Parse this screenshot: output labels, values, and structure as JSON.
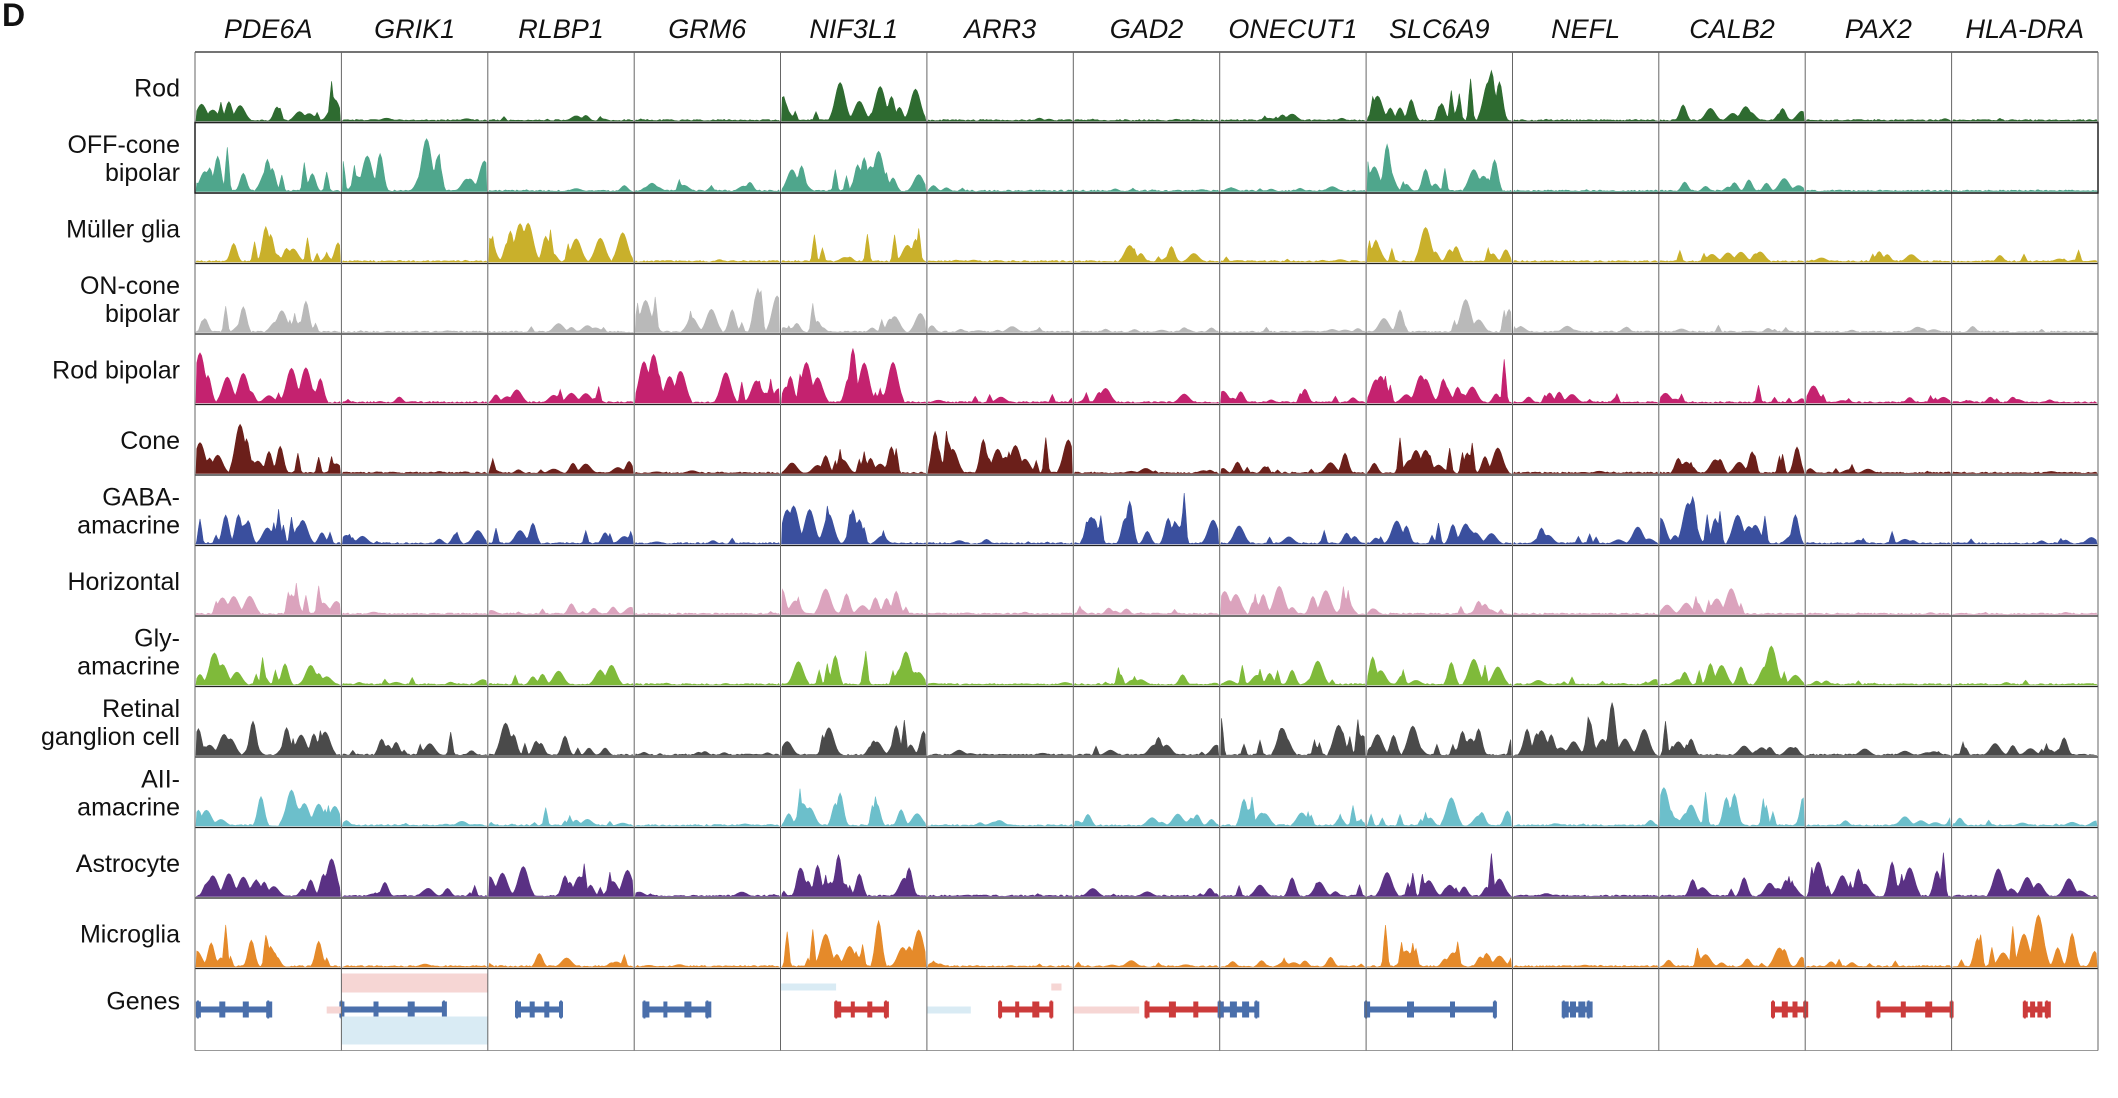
{
  "figure": {
    "panel_letter": "D"
  },
  "chart_data": {
    "type": "area",
    "genes": [
      "PDE6A",
      "GRIK1",
      "RLBP1",
      "GRM6",
      "NIF3L1",
      "ARR3",
      "GAD2",
      "ONECUT1",
      "SLC6A9",
      "NEFL",
      "CALB2",
      "PAX2",
      "HLA-DRA"
    ],
    "tracks": [
      {
        "label_lines": [
          "Rod"
        ],
        "color": "#2e6b30",
        "ends": "open"
      },
      {
        "label_lines": [
          "OFF-cone",
          "bipolar"
        ],
        "color": "#4fa68c",
        "ends": "closed"
      },
      {
        "label_lines": [
          "Müller glia"
        ],
        "color": "#c9b02b",
        "ends": "open"
      },
      {
        "label_lines": [
          "ON-cone",
          "bipolar"
        ],
        "color": "#b9b9b9",
        "ends": "open"
      },
      {
        "label_lines": [
          "Rod bipolar"
        ],
        "color": "#c4226f",
        "ends": "open"
      },
      {
        "label_lines": [
          "Cone"
        ],
        "color": "#6b1f1a",
        "ends": "open"
      },
      {
        "label_lines": [
          "GABA-",
          "amacrine"
        ],
        "color": "#3a4f9e",
        "ends": "open"
      },
      {
        "label_lines": [
          "Horizontal"
        ],
        "color": "#dba3bd",
        "ends": "open"
      },
      {
        "label_lines": [
          "Gly-",
          "amacrine"
        ],
        "color": "#7fba3a",
        "ends": "open"
      },
      {
        "label_lines": [
          "Retinal",
          "ganglion cell"
        ],
        "color": "#4a4a4a",
        "ends": "open"
      },
      {
        "label_lines": [
          "AII-",
          "amacrine"
        ],
        "color": "#6cbfcb",
        "ends": "open"
      },
      {
        "label_lines": [
          "Astrocyte"
        ],
        "color": "#5a3184",
        "ends": "open"
      },
      {
        "label_lines": [
          "Microglia"
        ],
        "color": "#e58a2a",
        "ends": "open"
      }
    ],
    "signal_matrix": [
      [
        0.8,
        0.05,
        0.15,
        0.05,
        0.75,
        0.05,
        0.05,
        0.15,
        0.95,
        0.03,
        0.35,
        0.05,
        0.05
      ],
      [
        0.85,
        0.9,
        0.15,
        0.25,
        0.75,
        0.1,
        0.08,
        0.1,
        0.85,
        0.03,
        0.3,
        0.03,
        0.03
      ],
      [
        0.65,
        0.03,
        0.9,
        0.05,
        0.6,
        0.05,
        0.35,
        0.1,
        0.6,
        0.03,
        0.25,
        0.2,
        0.2
      ],
      [
        0.55,
        0.05,
        0.2,
        0.85,
        0.5,
        0.15,
        0.1,
        0.1,
        0.55,
        0.15,
        0.15,
        0.1,
        0.1
      ],
      [
        0.85,
        0.15,
        0.35,
        0.9,
        0.9,
        0.2,
        0.3,
        0.25,
        0.7,
        0.25,
        0.35,
        0.3,
        0.15
      ],
      [
        0.8,
        0.05,
        0.3,
        0.05,
        0.7,
        0.95,
        0.1,
        0.35,
        0.9,
        0.05,
        0.5,
        0.15,
        0.05
      ],
      [
        0.9,
        0.3,
        0.4,
        0.1,
        0.85,
        0.1,
        0.95,
        0.3,
        0.5,
        0.35,
        0.85,
        0.2,
        0.15
      ],
      [
        0.7,
        0.05,
        0.2,
        0.05,
        0.6,
        0.05,
        0.15,
        0.75,
        0.3,
        0.03,
        0.45,
        0.05,
        0.05
      ],
      [
        0.7,
        0.15,
        0.35,
        0.05,
        0.75,
        0.05,
        0.3,
        0.6,
        0.6,
        0.15,
        0.65,
        0.1,
        0.1
      ],
      [
        0.75,
        0.45,
        0.55,
        0.1,
        0.75,
        0.1,
        0.3,
        0.85,
        0.6,
        0.95,
        0.55,
        0.15,
        0.35
      ],
      [
        0.75,
        0.1,
        0.3,
        0.05,
        0.75,
        0.1,
        0.3,
        0.65,
        0.55,
        0.1,
        0.85,
        0.2,
        0.15
      ],
      [
        0.75,
        0.25,
        0.85,
        0.1,
        0.8,
        0.05,
        0.2,
        0.4,
        0.8,
        0.05,
        0.45,
        0.9,
        0.5
      ],
      [
        0.8,
        0.05,
        0.3,
        0.05,
        0.85,
        0.1,
        0.15,
        0.2,
        0.75,
        0.05,
        0.4,
        0.15,
        0.9
      ]
    ],
    "genes_track": {
      "label": "Genes",
      "colors": {
        "strand_plus": "#4a6fab",
        "strand_minus": "#cc3b3b",
        "strand_plus_faint": "#d9ebf4",
        "strand_minus_faint": "#f6d6d4"
      }
    },
    "grid": true
  }
}
